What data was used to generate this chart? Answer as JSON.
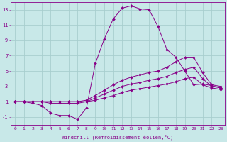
{
  "xlabel": "Windchill (Refroidissement éolien,°C)",
  "bg_color": "#c8e8e8",
  "grid_color": "#a8cece",
  "line_color": "#880088",
  "x_hours": [
    0,
    1,
    2,
    3,
    4,
    5,
    6,
    7,
    8,
    9,
    10,
    11,
    12,
    13,
    14,
    15,
    16,
    17,
    18,
    19,
    20,
    21,
    22,
    23
  ],
  "series": {
    "windchill": [
      1.0,
      1.0,
      0.8,
      0.5,
      -0.5,
      -0.8,
      -0.8,
      -1.3,
      0.2,
      6.0,
      9.2,
      11.8,
      13.2,
      13.5,
      13.1,
      13.0,
      10.8,
      7.8,
      6.8,
      5.0,
      3.2,
      3.3,
      3.1,
      2.8
    ],
    "line2": [
      1.0,
      1.0,
      1.0,
      1.0,
      1.0,
      1.0,
      1.0,
      1.0,
      1.2,
      1.8,
      2.5,
      3.2,
      3.8,
      4.2,
      4.5,
      4.8,
      5.0,
      5.5,
      6.2,
      6.8,
      6.8,
      4.8,
      3.2,
      3.0
    ],
    "line3": [
      1.0,
      1.0,
      1.0,
      1.0,
      1.0,
      1.0,
      1.0,
      1.0,
      1.0,
      1.5,
      2.0,
      2.5,
      3.0,
      3.3,
      3.5,
      3.8,
      4.0,
      4.3,
      4.8,
      5.2,
      5.5,
      4.0,
      3.0,
      2.8
    ],
    "line4": [
      1.0,
      1.0,
      1.0,
      1.0,
      0.8,
      0.8,
      0.8,
      0.8,
      1.0,
      1.2,
      1.5,
      1.8,
      2.2,
      2.5,
      2.7,
      2.9,
      3.1,
      3.3,
      3.6,
      4.0,
      4.2,
      3.2,
      2.8,
      2.6
    ]
  },
  "xlim_min": -0.5,
  "xlim_max": 23.5,
  "ylim": [
    -2,
    14
  ],
  "yticks": [
    -1,
    1,
    3,
    5,
    7,
    9,
    11,
    13
  ],
  "xticks": [
    0,
    1,
    2,
    3,
    4,
    5,
    6,
    7,
    8,
    9,
    10,
    11,
    12,
    13,
    14,
    15,
    16,
    17,
    18,
    19,
    20,
    21,
    22,
    23
  ]
}
